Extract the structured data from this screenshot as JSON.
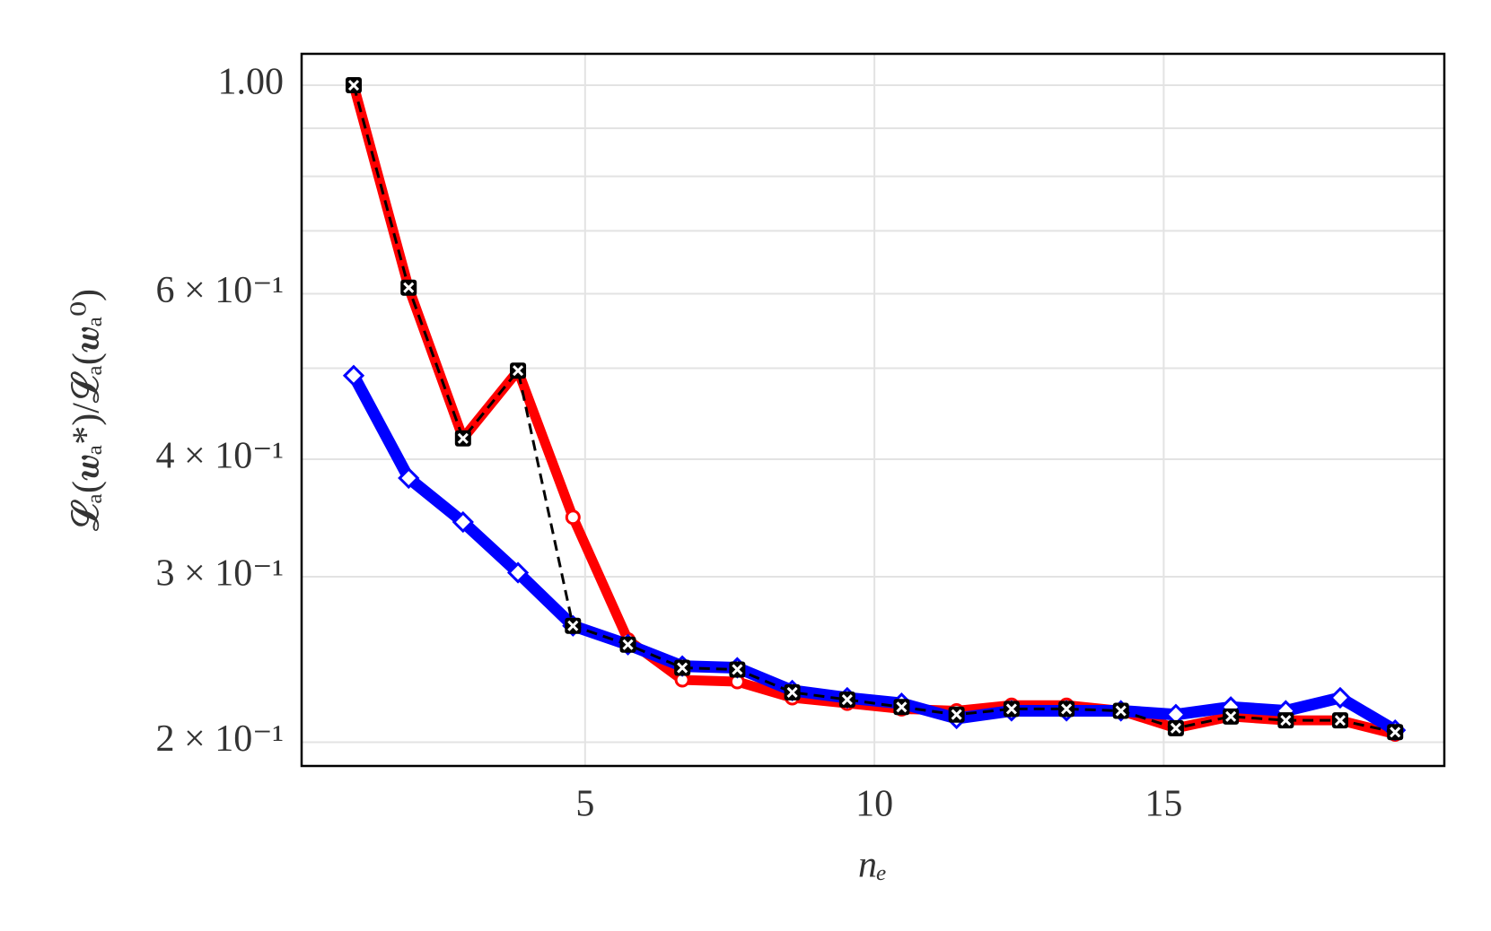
{
  "chart_data": {
    "type": "line",
    "xlabel": "nₑ",
    "ylabel": "𝓛ₐ(𝒘ₐ*)/𝓛ₐ(𝒘ₐ⁰)",
    "x": [
      1,
      1.95,
      2.89,
      3.84,
      4.79,
      5.74,
      6.68,
      7.63,
      8.58,
      9.53,
      10.47,
      11.42,
      12.37,
      13.32,
      14.26,
      15.21,
      16.16,
      17.11,
      18.05,
      19
    ],
    "series": [
      {
        "color": "#ff0000",
        "marker": "circle",
        "dashed": false,
        "values": [
          1.0,
          0.609,
          0.421,
          0.497,
          0.347,
          0.257,
          0.233,
          0.232,
          0.223,
          0.22,
          0.217,
          0.216,
          0.219,
          0.219,
          0.216,
          0.207,
          0.213,
          0.211,
          0.211,
          0.204
        ]
      },
      {
        "color": "#0000ff",
        "marker": "diamond",
        "dashed": false,
        "values": [
          0.491,
          0.382,
          0.343,
          0.303,
          0.266,
          0.254,
          0.241,
          0.24,
          0.227,
          0.223,
          0.22,
          0.212,
          0.216,
          0.216,
          0.216,
          0.214,
          0.218,
          0.216,
          0.223,
          0.206
        ]
      },
      {
        "color": "#000000",
        "marker": "x",
        "dashed": true,
        "values": [
          1.0,
          0.609,
          0.421,
          0.497,
          0.266,
          0.254,
          0.24,
          0.239,
          0.226,
          0.222,
          0.218,
          0.214,
          0.217,
          0.217,
          0.216,
          0.207,
          0.213,
          0.211,
          0.211,
          0.205
        ]
      }
    ],
    "xlim": [
      0.1,
      19.85
    ],
    "xticks": [
      5,
      10,
      15
    ],
    "ylim": [
      0.1887,
      1.08
    ],
    "log_y": true,
    "yticks": [
      {
        "value": 0.2,
        "label": "2 × 10⁻¹"
      },
      {
        "value": 0.3,
        "label": "3 × 10⁻¹"
      },
      {
        "value": 0.4,
        "label": "4 × 10⁻¹"
      },
      {
        "value": 0.6,
        "label": "6 × 10⁻¹"
      },
      {
        "value": 1.0,
        "label": "1.00"
      }
    ],
    "yminor": [
      0.5,
      0.7,
      0.8,
      0.9
    ],
    "grid": true
  }
}
